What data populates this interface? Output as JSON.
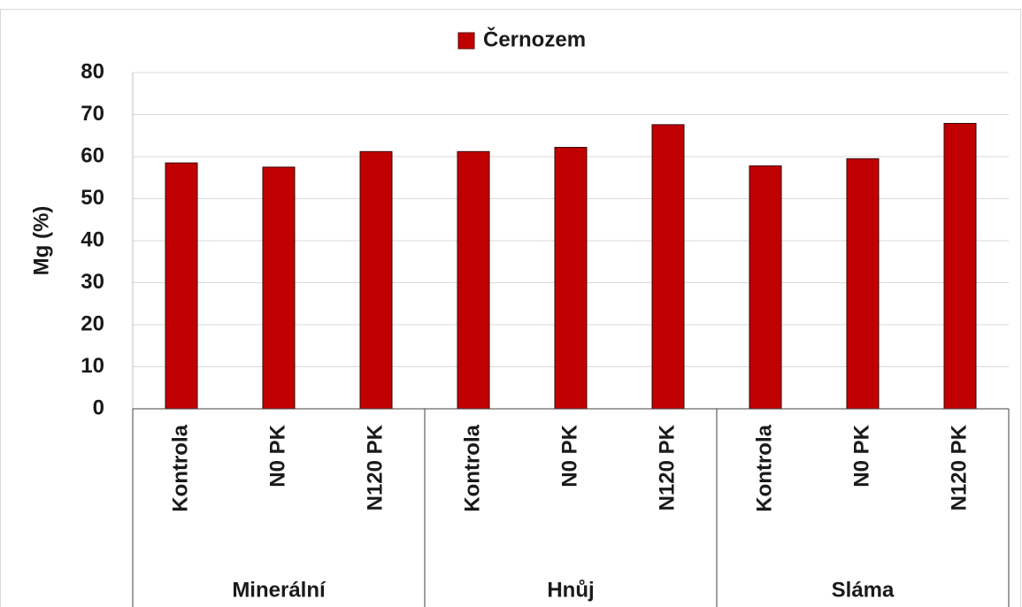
{
  "chart_data": {
    "type": "bar",
    "legend": "Černozem",
    "ylabel": "Mg (%)",
    "categories": [
      "Kontrola",
      "N0 PK",
      "N120 PK",
      "Kontrola",
      "N0 PK",
      "N120 PK",
      "Kontrola",
      "N0 PK",
      "N120 PK"
    ],
    "groups": [
      "Minerální",
      "Hnůj",
      "Sláma"
    ],
    "values": [
      58.5,
      57.5,
      61.2,
      61.2,
      62.2,
      67.6,
      57.8,
      59.5,
      67.9
    ],
    "color": "#c00000",
    "ylim": [
      0,
      80
    ],
    "yticks": [
      0,
      10,
      20,
      30,
      40,
      50,
      60,
      70,
      80
    ],
    "grid": true
  }
}
